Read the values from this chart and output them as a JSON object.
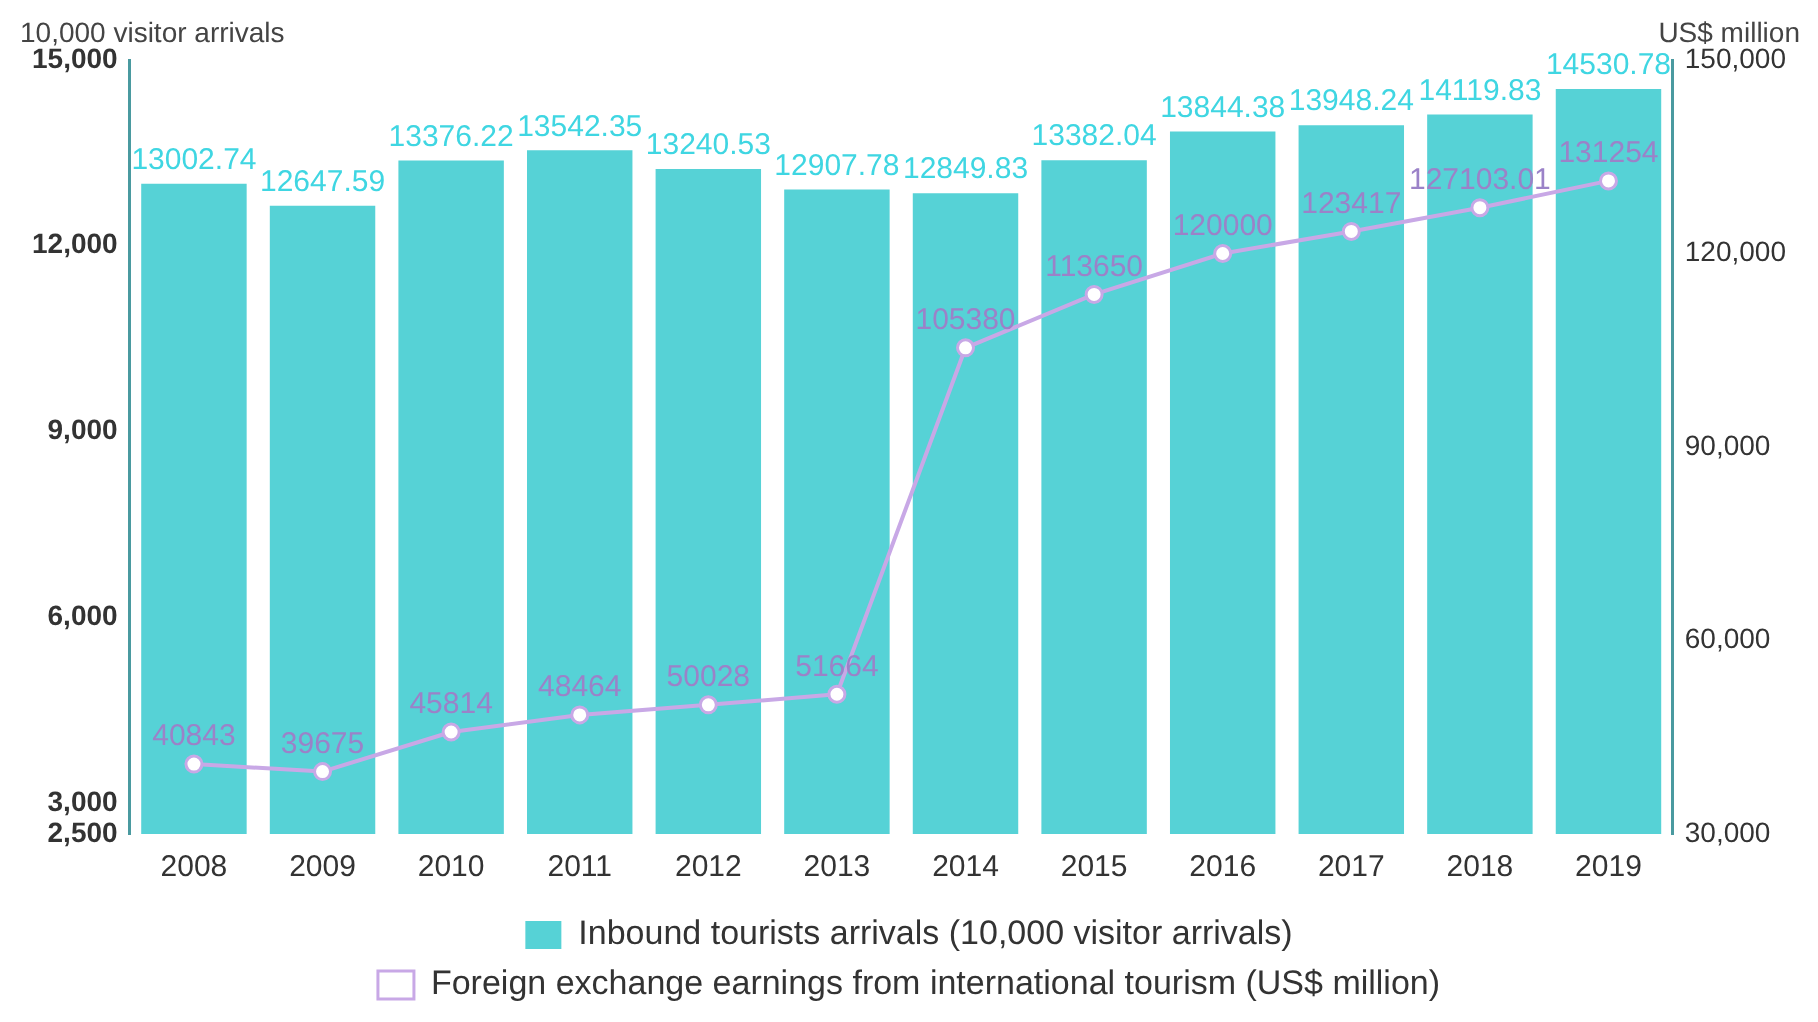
{
  "chart_data": {
    "type": "bar",
    "categories": [
      "2008",
      "2009",
      "2010",
      "2011",
      "2012",
      "2013",
      "2014",
      "2015",
      "2016",
      "2017",
      "2018",
      "2019"
    ],
    "ylabel": "10,000 visitor arrivals",
    "y2label": "US$ million",
    "series": [
      {
        "name": "Inbound tourists arrivals (10,000 visitor arrivals)",
        "color": "#56d2d6",
        "values": [
          13002.74,
          12647.59,
          13376.22,
          13542.35,
          13240.53,
          12907.78,
          12849.83,
          13382.04,
          13844.38,
          13948.24,
          14119.83,
          14530.78
        ]
      },
      {
        "name": "Foreign exchange earnings from international tourism (US$ million)",
        "type": "line",
        "axis": "y2",
        "color": "#c8a8e6",
        "marker": "circle",
        "values": [
          40843,
          39675,
          45814,
          48464,
          50028,
          51664,
          105380,
          113650,
          120000,
          123417,
          127103.01,
          131254
        ]
      }
    ],
    "ylim": [
      2500,
      15000
    ],
    "yticks": [
      {
        "value": 2500,
        "label": "2,500"
      },
      {
        "value": 3000,
        "label": "3,000"
      },
      {
        "value": 6000,
        "label": "6,000"
      },
      {
        "value": 9000,
        "label": "9,000"
      },
      {
        "value": 12000,
        "label": "12,000"
      },
      {
        "value": 15000,
        "label": "15,000"
      }
    ],
    "y2lim": [
      30000,
      150000
    ],
    "y2ticks": [
      {
        "value": 30000,
        "label": "30,000"
      },
      {
        "value": 60000,
        "label": "60,000"
      },
      {
        "value": 90000,
        "label": "90,000"
      },
      {
        "value": 120000,
        "label": "120,000"
      },
      {
        "value": 150000,
        "label": "150,000"
      }
    ],
    "data_labels": true,
    "grid": false,
    "legend": "bottom"
  }
}
